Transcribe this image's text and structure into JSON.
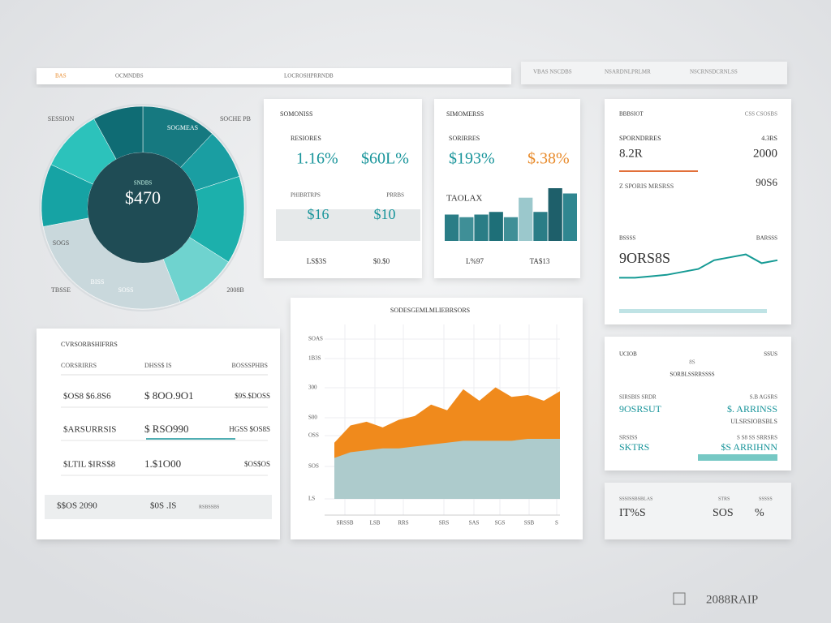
{
  "nav": {
    "items": [
      "BAS",
      "OCMNDBS",
      "LOCROSHPRRNDB"
    ],
    "right": [
      "VBAS NSCDBS",
      "NSARDNLPRLMR",
      "NSCRNSDCRNLSS"
    ]
  },
  "donut": {
    "center_value": "$470",
    "center_label": "SNDBS",
    "labels": [
      "SESSION",
      "SOCHE PB",
      "SOGMEAS",
      "SOGS",
      "BISS",
      "SOSS",
      "TBSSE",
      "2008B"
    ],
    "values": [
      12,
      8,
      14,
      10,
      28,
      10,
      10,
      8
    ],
    "colors": [
      "#167980",
      "#1a9ea2",
      "#1cb0ac",
      "#6fd3cf",
      "#c9d8dc",
      "#16a3a4",
      "#2cc2bb",
      "#0f6c74"
    ]
  },
  "card_a": {
    "title": "SOMONISS",
    "label": "RESIORES",
    "stats": [
      "1.16%",
      "$60L%"
    ],
    "sublabels": [
      "PHIBRTRPS",
      "PRRBS"
    ],
    "values": [
      "$16",
      "$10"
    ],
    "footer": [
      "LS$3S",
      "$0.$0"
    ]
  },
  "card_b": {
    "title": "SIMOMERSS",
    "label": "SORIRRES",
    "stats": [
      "$193%",
      "$.38%"
    ],
    "sublabel": "TAOLAX",
    "footer": [
      "L%97",
      "TA$13"
    ],
    "bars": {
      "ylim": [
        0,
        100
      ],
      "values": [
        50,
        45,
        50,
        55,
        45,
        82,
        55,
        100,
        90
      ],
      "colors": [
        "#2a7d86",
        "#3f8f97",
        "#2a7d86",
        "#1e6f78",
        "#3f8f97",
        "#9bc8cc",
        "#2a7d86",
        "#1e5f6a",
        "#2f8690"
      ]
    }
  },
  "card_c": {
    "title": "BBBSIOT",
    "title_right": "CSS CSOSBS",
    "row1": [
      "SPORNDRRES",
      "4.3RS"
    ],
    "big1": [
      "8.2R",
      "2000"
    ],
    "row2": [
      "Z SPORIS MRSRSS",
      "90S6"
    ],
    "row3": [
      "BSSSS",
      "BARSSS"
    ],
    "big2": "9ORS8S",
    "line": {
      "ylim": [
        0,
        10
      ],
      "values": [
        1,
        1,
        1.5,
        2,
        3,
        4,
        7,
        8,
        9,
        6,
        7
      ],
      "color": "#159a94"
    }
  },
  "card_d": {
    "title": "UCIOB",
    "mid": "8S",
    "title_right": "SSUS",
    "subtitle": "SORBLSSRRSSSS",
    "rows": [
      [
        "SIRSBIS SRDR",
        "S.B AGSRS"
      ],
      [
        "9OSRSUT",
        "$. ARRINSS"
      ],
      [
        "",
        "ULSRSIOBSBLS"
      ],
      [
        "SRSISS",
        "S S8 SS SRRSRS"
      ],
      [
        "SKTRS",
        "$S ARRIHNN"
      ]
    ]
  },
  "card_e": {
    "labels": [
      "SSSISSBSBLAS",
      "STRS",
      "SSSSS"
    ],
    "values": [
      "IT%S",
      "SOS",
      "%"
    ]
  },
  "table": {
    "title": "CVRSORBSHIFRRS",
    "headers": [
      "CORSRIRRS",
      "DHSS$ IS",
      "BOSSSPHBS"
    ],
    "rows": [
      [
        "$OS8  $6.8S6",
        "$ 8OO.9O1",
        "$9S.$DOSS"
      ],
      [
        "$ARSURRSIS",
        "$ RSO990",
        "HGSS $OS8S"
      ],
      [
        "$LTIL $IRS$8",
        "1.$1O00",
        "$OS$OS"
      ]
    ],
    "footer": [
      "$$OS 2090",
      "$0S .IS",
      "RSBSSBS"
    ]
  },
  "area": {
    "title": "SODESGEMLMLIEBRSORS",
    "ylabels": [
      "SOAS",
      "1B3S",
      "300",
      "S00",
      "OSS",
      "SOS",
      "LS"
    ],
    "xlabels": [
      "SRSSB",
      "LSB",
      "RRS",
      "SRS",
      "SAS",
      "SGS",
      "SSB",
      "S"
    ],
    "ylim": [
      0,
      100
    ],
    "series": [
      {
        "color": "#f08a1c",
        "values": [
          38,
          47,
          49,
          46,
          50,
          52,
          58,
          55,
          66,
          60,
          67,
          62,
          63,
          60,
          65
        ]
      },
      {
        "color": "#a9cfd6",
        "values": [
          30,
          33,
          34,
          35,
          35,
          36,
          37,
          38,
          39,
          39,
          39,
          39,
          40,
          40,
          40
        ]
      }
    ]
  },
  "footer": "2088RAIP"
}
